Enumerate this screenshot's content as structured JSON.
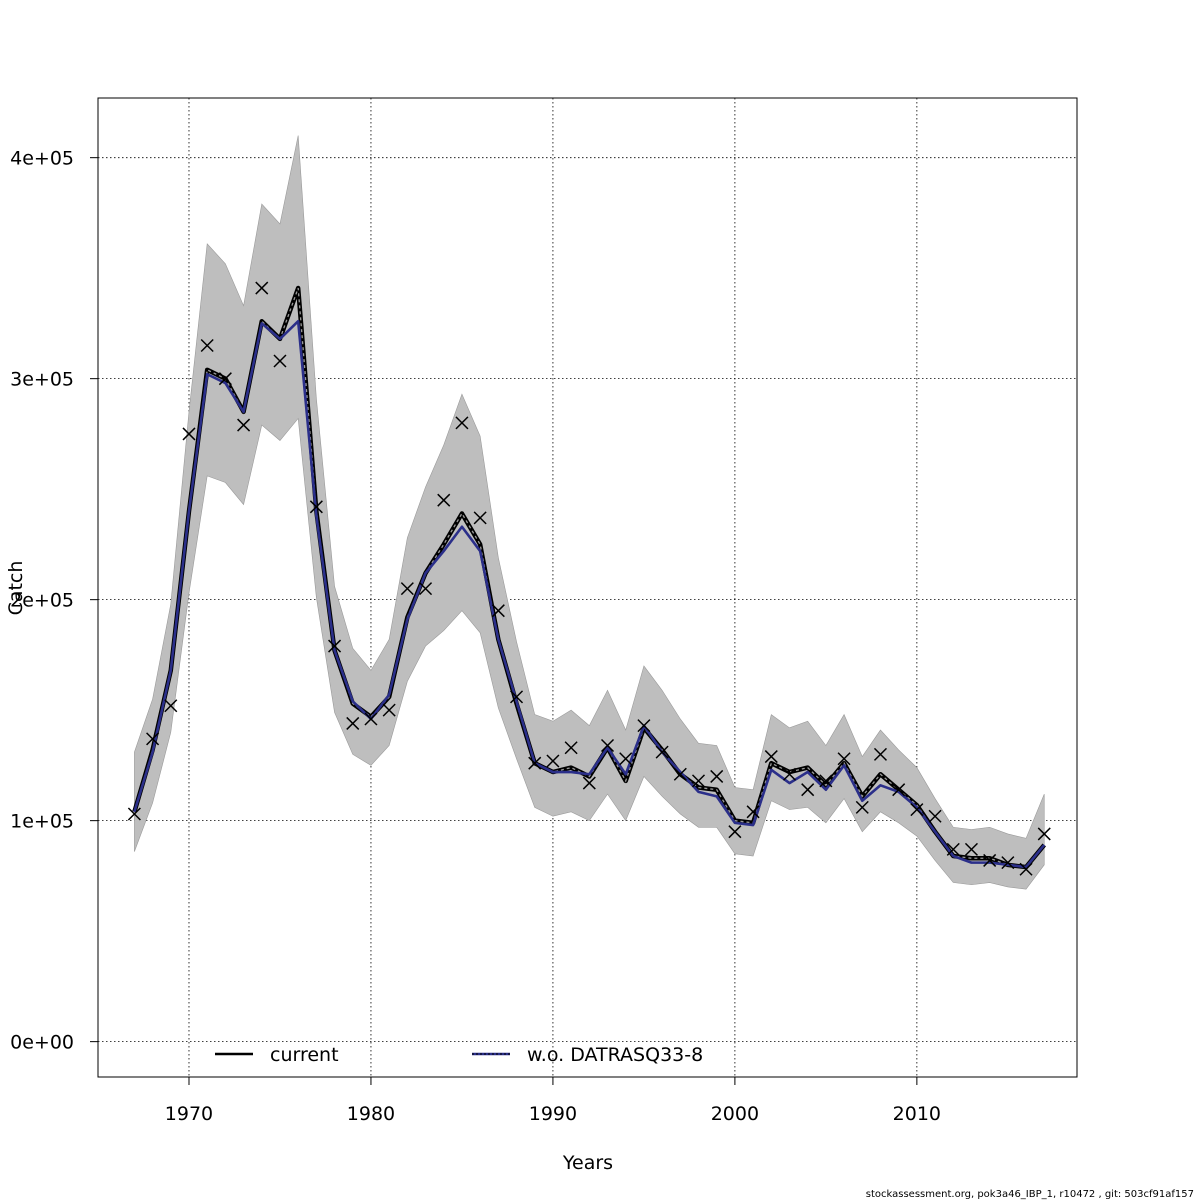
{
  "chart_data": {
    "type": "line",
    "xlabel": "Years",
    "ylabel": "Catch",
    "xlim": [
      1965,
      2018.8
    ],
    "ylim": [
      -16000,
      427000
    ],
    "xticks": [
      1970,
      1980,
      1990,
      2000,
      2010
    ],
    "xtick_labels": [
      "1970",
      "1980",
      "1990",
      "2000",
      "2010"
    ],
    "yticks": [
      0,
      100000,
      200000,
      300000,
      400000
    ],
    "ytick_labels": [
      "0e+00",
      "1e+05",
      "2e+05",
      "3e+05",
      "4e+05"
    ],
    "grid": true,
    "legend_placement": "bottom",
    "x": [
      1967,
      1968,
      1969,
      1970,
      1971,
      1972,
      1973,
      1974,
      1975,
      1976,
      1977,
      1978,
      1979,
      1980,
      1981,
      1982,
      1983,
      1984,
      1985,
      1986,
      1987,
      1988,
      1989,
      1990,
      1991,
      1992,
      1993,
      1994,
      1995,
      1996,
      1997,
      1998,
      1999,
      2000,
      2001,
      2002,
      2003,
      2004,
      2005,
      2006,
      2007,
      2008,
      2009,
      2010,
      2011,
      2012,
      2013,
      2014,
      2015,
      2016,
      2017
    ],
    "series": [
      {
        "name": "current",
        "color": "#000000",
        "style": "dashed",
        "values": [
          104000,
          132000,
          168000,
          240000,
          304000,
          300000,
          285000,
          326000,
          318000,
          341000,
          240000,
          177000,
          153000,
          147000,
          156000,
          192000,
          212000,
          225000,
          239000,
          225000,
          182000,
          153000,
          126000,
          122000,
          124000,
          120000,
          133000,
          118000,
          142000,
          132000,
          121000,
          115000,
          114000,
          100000,
          99000,
          126000,
          122000,
          124000,
          116000,
          126000,
          111000,
          121000,
          114000,
          107000,
          95000,
          84000,
          83000,
          83000,
          80000,
          79000,
          89000
        ]
      },
      {
        "name": "w.o. DATRASQ33-8",
        "color": "#2b2f8a",
        "style": "solid",
        "values": [
          104000,
          131000,
          168000,
          240000,
          302000,
          298000,
          285000,
          325000,
          318000,
          326000,
          238000,
          177000,
          154000,
          146000,
          157000,
          191000,
          212000,
          222000,
          233000,
          222000,
          182000,
          154000,
          126000,
          122000,
          122000,
          121000,
          133000,
          121000,
          143000,
          131000,
          122000,
          113000,
          111000,
          99000,
          98000,
          123000,
          117000,
          122000,
          114000,
          125000,
          109000,
          116000,
          113000,
          106000,
          95000,
          84000,
          81000,
          81000,
          80000,
          79000,
          89000
        ]
      }
    ],
    "band": {
      "color": "#bebebe",
      "upper": [
        131000,
        155000,
        198000,
        285000,
        361000,
        352000,
        333000,
        379000,
        370000,
        410000,
        291000,
        206000,
        178000,
        168000,
        182000,
        228000,
        251000,
        270000,
        293000,
        274000,
        219000,
        181000,
        148000,
        145000,
        150000,
        143000,
        159000,
        141000,
        170000,
        159000,
        146000,
        135000,
        134000,
        115000,
        114000,
        148000,
        142000,
        145000,
        134000,
        148000,
        129000,
        141000,
        132000,
        124000,
        110000,
        97000,
        96000,
        97000,
        94000,
        92000,
        112000
      ],
      "lower": [
        86000,
        108000,
        140000,
        203000,
        256000,
        253000,
        243000,
        279000,
        272000,
        282000,
        201000,
        149000,
        130000,
        125000,
        134000,
        163000,
        179000,
        186000,
        195000,
        185000,
        151000,
        128000,
        106000,
        102000,
        104000,
        100000,
        112000,
        100000,
        120000,
        111000,
        103000,
        97000,
        97000,
        85000,
        84000,
        109000,
        105000,
        106000,
        99000,
        110000,
        95000,
        104000,
        99000,
        93000,
        82000,
        72000,
        71000,
        72000,
        70000,
        69000,
        80000
      ]
    },
    "observations": {
      "marker": "x",
      "values": [
        103000,
        137000,
        152000,
        275000,
        315000,
        300000,
        279000,
        341000,
        308000,
        null,
        242000,
        179000,
        144000,
        146000,
        150000,
        205000,
        205000,
        245000,
        280000,
        237000,
        195000,
        156000,
        126000,
        127000,
        133000,
        117000,
        134000,
        128000,
        143000,
        131000,
        121000,
        118000,
        120000,
        95000,
        104000,
        129000,
        121000,
        114000,
        118000,
        128000,
        106000,
        130000,
        114000,
        105000,
        102000,
        87000,
        87000,
        82000,
        81000,
        78000,
        94000
      ]
    },
    "legend": [
      "current",
      "w.o. DATRASQ33-8"
    ]
  },
  "footer": "stockassessment.org, pok3a46_IBP_1, r10472 , git: 503cf91af157"
}
